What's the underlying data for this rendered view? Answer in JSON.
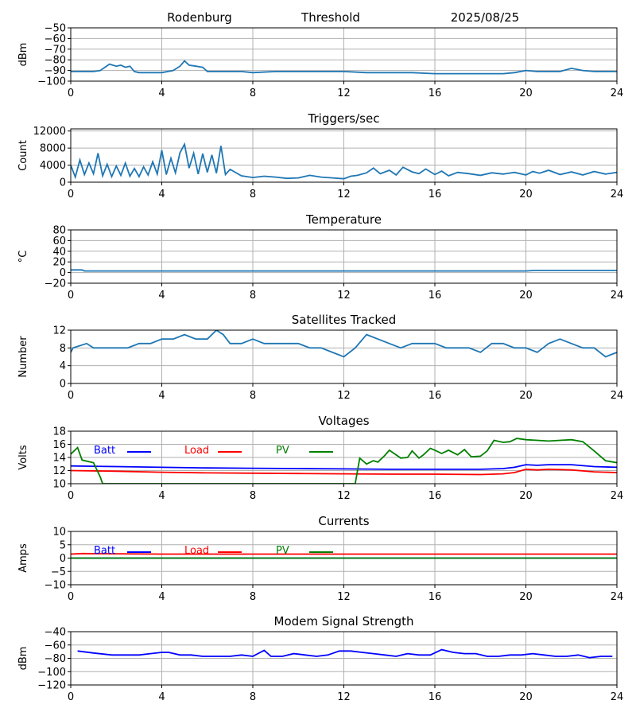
{
  "header": {
    "station": "Rodenburg",
    "mode": "Threshold",
    "date": "2025/08/25"
  },
  "chart_data": [
    {
      "id": "threshold",
      "type": "line",
      "title": "",
      "xlabel": "",
      "ylabel": "dBm",
      "xlim": [
        0,
        24
      ],
      "ylim": [
        -100,
        -50
      ],
      "yticks": [
        -100,
        -90,
        -80,
        -70,
        -60,
        -50
      ],
      "xticks": [
        0,
        4,
        8,
        12,
        16,
        20,
        24
      ],
      "grid": true,
      "series": [
        {
          "color": "#1f77b4",
          "x": [
            0,
            0.5,
            1,
            1.3,
            1.5,
            1.7,
            2,
            2.2,
            2.4,
            2.6,
            2.8,
            3,
            3.5,
            4,
            4.5,
            4.8,
            5,
            5.2,
            5.5,
            5.8,
            6,
            6.5,
            7,
            7.5,
            8,
            9,
            10,
            11,
            12,
            13,
            14,
            15,
            16,
            17,
            18,
            19,
            19.5,
            20,
            20.5,
            21,
            21.5,
            22,
            22.5,
            23,
            23.5,
            24
          ],
          "y": [
            -91,
            -91,
            -91,
            -90,
            -87,
            -84,
            -86,
            -85,
            -87,
            -86,
            -91,
            -92,
            -92,
            -92,
            -90,
            -86,
            -81,
            -85,
            -86,
            -87,
            -91,
            -91,
            -91,
            -91,
            -92,
            -91,
            -91,
            -91,
            -91,
            -92,
            -92,
            -92,
            -93,
            -93,
            -93,
            -93,
            -92,
            -90,
            -91,
            -91,
            -91,
            -88,
            -90,
            -91,
            -91,
            -91
          ]
        }
      ]
    },
    {
      "id": "triggers",
      "type": "line",
      "title": "Triggers/sec",
      "xlabel": "",
      "ylabel": "Count",
      "xlim": [
        0,
        24
      ],
      "ylim": [
        0,
        12500
      ],
      "yticks": [
        0,
        4000,
        8000,
        12000
      ],
      "xticks": [
        0,
        4,
        8,
        12,
        16,
        20,
        24
      ],
      "grid": true,
      "series": [
        {
          "color": "#1f77b4",
          "x": [
            0,
            0.2,
            0.4,
            0.6,
            0.8,
            1,
            1.2,
            1.4,
            1.6,
            1.8,
            2,
            2.2,
            2.4,
            2.6,
            2.8,
            3,
            3.2,
            3.4,
            3.6,
            3.8,
            4,
            4.2,
            4.4,
            4.6,
            4.8,
            5,
            5.2,
            5.4,
            5.6,
            5.8,
            6,
            6.2,
            6.4,
            6.6,
            6.8,
            7,
            7.5,
            8,
            8.5,
            9,
            9.5,
            10,
            10.5,
            11,
            11.5,
            12,
            12.3,
            12.6,
            13,
            13.3,
            13.6,
            14,
            14.3,
            14.6,
            15,
            15.3,
            15.6,
            16,
            16.3,
            16.6,
            17,
            17.5,
            18,
            18.5,
            19,
            19.5,
            20,
            20.3,
            20.6,
            21,
            21.5,
            22,
            22.5,
            23,
            23.5,
            24
          ],
          "y": [
            4000,
            1200,
            5200,
            1800,
            4500,
            2000,
            6800,
            1500,
            4200,
            1300,
            3800,
            1600,
            4500,
            1400,
            3200,
            1300,
            3600,
            1700,
            4800,
            1900,
            7500,
            1800,
            5600,
            2200,
            6900,
            8900,
            3300,
            6800,
            1900,
            6700,
            2300,
            6400,
            2100,
            8500,
            1800,
            3000,
            1500,
            1100,
            1400,
            1200,
            900,
            1000,
            1600,
            1200,
            1000,
            800,
            1400,
            1600,
            2200,
            3300,
            2000,
            2800,
            1700,
            3500,
            2400,
            2000,
            3100,
            1800,
            2600,
            1500,
            2300,
            2000,
            1600,
            2200,
            1900,
            2300,
            1700,
            2500,
            2100,
            2800,
            1800,
            2400,
            1700,
            2500,
            1900,
            2300
          ]
        }
      ]
    },
    {
      "id": "temperature",
      "type": "line",
      "title": "Temperature",
      "xlabel": "",
      "ylabel": "°C",
      "xlim": [
        0,
        24
      ],
      "ylim": [
        -20,
        80
      ],
      "yticks": [
        -20,
        0,
        20,
        40,
        60,
        80
      ],
      "xticks": [
        0,
        4,
        8,
        12,
        16,
        20,
        24
      ],
      "grid": true,
      "series": [
        {
          "color": "#1f77b4",
          "x": [
            0,
            0.5,
            0.6,
            4,
            8,
            12,
            16,
            20,
            20.4,
            24
          ],
          "y": [
            5,
            5,
            3,
            3,
            3,
            3,
            3,
            3,
            4,
            4
          ]
        }
      ]
    },
    {
      "id": "satellites",
      "type": "line",
      "title": "Satellites Tracked",
      "xlabel": "",
      "ylabel": "Number",
      "xlim": [
        0,
        24
      ],
      "ylim": [
        0,
        12
      ],
      "yticks": [
        0,
        4,
        8,
        12
      ],
      "xticks": [
        0,
        4,
        8,
        12,
        16,
        20,
        24
      ],
      "grid": true,
      "series": [
        {
          "color": "#1f77b4",
          "x": [
            0,
            0.1,
            0.7,
            1,
            1.4,
            2,
            2.5,
            3,
            3.5,
            4,
            4.5,
            5,
            5.5,
            6,
            6.4,
            6.7,
            7,
            7.5,
            8,
            8.5,
            9,
            9.5,
            10,
            10.5,
            11,
            11.5,
            12,
            12.5,
            13,
            13.5,
            14,
            14.5,
            15,
            15.5,
            16,
            16.5,
            17,
            17.5,
            18,
            18.5,
            19,
            19.5,
            20,
            20.5,
            21,
            21.5,
            22,
            22.5,
            23,
            23.5,
            24
          ],
          "y": [
            7,
            8,
            9,
            8,
            8,
            8,
            8,
            9,
            9,
            10,
            10,
            11,
            10,
            10,
            12,
            11,
            9,
            9,
            10,
            9,
            9,
            9,
            9,
            8,
            8,
            7,
            6,
            8,
            11,
            10,
            9,
            8,
            9,
            9,
            9,
            8,
            8,
            8,
            7,
            9,
            9,
            8,
            8,
            7,
            9,
            10,
            9,
            8,
            8,
            6,
            7
          ]
        }
      ]
    },
    {
      "id": "voltages",
      "type": "line",
      "title": "Voltages",
      "xlabel": "",
      "ylabel": "Volts",
      "xlim": [
        0,
        24
      ],
      "ylim": [
        10,
        18
      ],
      "yticks": [
        10,
        12,
        14,
        16,
        18
      ],
      "xticks": [
        0,
        4,
        8,
        12,
        16,
        20,
        24
      ],
      "grid": true,
      "legend": "inline-top",
      "series": [
        {
          "name": "Batt",
          "color": "#0000ff",
          "x": [
            0,
            2,
            4,
            6,
            8,
            10,
            12,
            14,
            16,
            18,
            19,
            19.5,
            20,
            20.5,
            21,
            22,
            23,
            24
          ],
          "y": [
            12.7,
            12.6,
            12.5,
            12.4,
            12.35,
            12.3,
            12.25,
            12.2,
            12.2,
            12.2,
            12.3,
            12.5,
            12.9,
            12.8,
            12.9,
            12.9,
            12.6,
            12.5
          ]
        },
        {
          "name": "Load",
          "color": "#ff0000",
          "x": [
            0,
            2,
            4,
            6,
            8,
            10,
            12,
            14,
            16,
            18,
            19,
            19.5,
            20,
            20.5,
            21,
            22,
            23,
            24
          ],
          "y": [
            12.0,
            11.9,
            11.75,
            11.65,
            11.6,
            11.55,
            11.5,
            11.45,
            11.45,
            11.4,
            11.5,
            11.7,
            12.2,
            12.1,
            12.2,
            12.1,
            11.8,
            11.7
          ],
          "style": "red-line"
        },
        {
          "name": "PV",
          "color": "#008000",
          "x": [
            0,
            0.3,
            0.5,
            1.0,
            1.3,
            1.4,
            12.5,
            12.7,
            13.0,
            13.3,
            13.5,
            13.8,
            14.0,
            14.5,
            14.8,
            15.0,
            15.3,
            15.5,
            15.8,
            16.0,
            16.3,
            16.6,
            17.0,
            17.3,
            17.6,
            18.0,
            18.3,
            18.6,
            19.0,
            19.3,
            19.6,
            20.0,
            20.5,
            21,
            21.5,
            22,
            22.5,
            23,
            23.5,
            24
          ],
          "y": [
            14.5,
            15.5,
            13.6,
            13.2,
            11.0,
            10.0,
            10.0,
            13.9,
            13.0,
            13.5,
            13.3,
            14.3,
            15.1,
            13.9,
            14.0,
            15.0,
            13.9,
            14.4,
            15.4,
            15.1,
            14.6,
            15.1,
            14.4,
            15.2,
            14.1,
            14.2,
            15.0,
            16.6,
            16.3,
            16.4,
            16.9,
            16.7,
            16.6,
            16.5,
            16.6,
            16.7,
            16.4,
            15.0,
            13.5,
            13.2
          ]
        }
      ]
    },
    {
      "id": "currents",
      "type": "line",
      "title": "Currents",
      "xlabel": "",
      "ylabel": "Amps",
      "xlim": [
        0,
        24
      ],
      "ylim": [
        -10,
        10
      ],
      "yticks": [
        -10,
        -5,
        0,
        5,
        10
      ],
      "xticks": [
        0,
        4,
        8,
        12,
        16,
        20,
        24
      ],
      "grid": true,
      "legend": "inline-top",
      "series": [
        {
          "name": "Batt",
          "color": "#0000ff",
          "x": [
            0,
            4,
            8,
            12,
            16,
            20,
            24
          ],
          "y": [
            0,
            0,
            0,
            0,
            0,
            0,
            0
          ]
        },
        {
          "name": "Load",
          "color": "#ff0000",
          "x": [
            0,
            0.5,
            4,
            8,
            12,
            16,
            20,
            24
          ],
          "y": [
            1.5,
            1.7,
            1.5,
            1.5,
            1.5,
            1.5,
            1.5,
            1.5
          ]
        },
        {
          "name": "PV",
          "color": "#008000",
          "x": [
            0,
            4,
            8,
            12,
            16,
            20,
            24
          ],
          "y": [
            0,
            0,
            0,
            0,
            0,
            0,
            0
          ]
        }
      ]
    },
    {
      "id": "modem",
      "type": "line",
      "title": "Modem Signal Strength",
      "xlabel": "",
      "ylabel": "dBm",
      "xlim": [
        0,
        24
      ],
      "ylim": [
        -120,
        -40
      ],
      "yticks": [
        -120,
        -100,
        -80,
        -60,
        -40
      ],
      "xticks": [
        0,
        4,
        8,
        12,
        16,
        20,
        24
      ],
      "grid": true,
      "series": [
        {
          "color": "#0000ff",
          "x": [
            0.3,
            1,
            1.8,
            2.5,
            3,
            3.5,
            4,
            4.3,
            4.8,
            5.3,
            5.8,
            6.5,
            7,
            7.5,
            8,
            8.5,
            8.8,
            9.3,
            9.8,
            10.3,
            10.8,
            11.3,
            11.8,
            12.3,
            12.8,
            13.3,
            13.8,
            14.3,
            14.8,
            15.3,
            15.8,
            16.3,
            16.8,
            17.3,
            17.8,
            18.3,
            18.8,
            19.3,
            19.8,
            20.3,
            20.8,
            21.3,
            21.8,
            22.3,
            22.8,
            23.3,
            23.8
          ],
          "y": [
            -69,
            -72,
            -75,
            -75,
            -75,
            -73,
            -71,
            -71,
            -75,
            -75,
            -77,
            -77,
            -77,
            -75,
            -77,
            -68,
            -77,
            -77,
            -73,
            -75,
            -77,
            -75,
            -69,
            -69,
            -71,
            -73,
            -75,
            -77,
            -73,
            -75,
            -75,
            -67,
            -71,
            -73,
            -73,
            -77,
            -77,
            -75,
            -75,
            -73,
            -75,
            -77,
            -77,
            -75,
            -79,
            -77,
            -77
          ]
        }
      ]
    }
  ]
}
